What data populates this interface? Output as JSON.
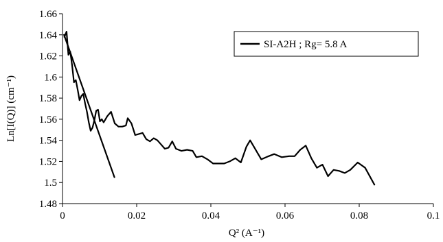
{
  "chart_data": {
    "type": "line",
    "title": "",
    "xlabel": "Q² (A⁻¹)",
    "ylabel": "Ln[I(Q)] (cm⁻¹)",
    "xlim": [
      0,
      0.1
    ],
    "ylim": [
      1.48,
      1.66
    ],
    "x_ticks": [
      "0",
      "0.02",
      "0.04",
      "0.06",
      "0.08",
      "0.1"
    ],
    "y_ticks": [
      "1.48",
      "1.5",
      "1.52",
      "1.54",
      "1.56",
      "1.58",
      "1.6",
      "1.62",
      "1.64",
      "1.66"
    ],
    "grid": false,
    "legend": {
      "placement": "top-right",
      "entries": [
        "SI-A2H ; Rg= 5.8 A"
      ]
    },
    "series": [
      {
        "name": "SI-A2H ; Rg= 5.8 A",
        "color": "#000000",
        "points": [
          [
            0.0005,
            1.638
          ],
          [
            0.0011,
            1.643
          ],
          [
            0.0016,
            1.621
          ],
          [
            0.0021,
            1.624
          ],
          [
            0.0026,
            1.611
          ],
          [
            0.0031,
            1.595
          ],
          [
            0.0036,
            1.597
          ],
          [
            0.0041,
            1.588
          ],
          [
            0.0046,
            1.578
          ],
          [
            0.0051,
            1.582
          ],
          [
            0.0056,
            1.584
          ],
          [
            0.0061,
            1.575
          ],
          [
            0.0066,
            1.567
          ],
          [
            0.0071,
            1.557
          ],
          [
            0.0076,
            1.549
          ],
          [
            0.0081,
            1.552
          ],
          [
            0.0086,
            1.559
          ],
          [
            0.0091,
            1.568
          ],
          [
            0.0096,
            1.569
          ],
          [
            0.0101,
            1.558
          ],
          [
            0.0106,
            1.56
          ],
          [
            0.0111,
            1.557
          ],
          [
            0.0116,
            1.56
          ],
          [
            0.0121,
            1.563
          ],
          [
            0.0131,
            1.567
          ],
          [
            0.0141,
            1.556
          ],
          [
            0.0151,
            1.553
          ],
          [
            0.0161,
            1.553
          ],
          [
            0.0171,
            1.554
          ],
          [
            0.0176,
            1.561
          ],
          [
            0.0186,
            1.556
          ],
          [
            0.0196,
            1.545
          ],
          [
            0.0206,
            1.546
          ],
          [
            0.0216,
            1.547
          ],
          [
            0.0226,
            1.541
          ],
          [
            0.0236,
            1.539
          ],
          [
            0.0246,
            1.542
          ],
          [
            0.0256,
            1.54
          ],
          [
            0.0266,
            1.536
          ],
          [
            0.0276,
            1.532
          ],
          [
            0.0286,
            1.533
          ],
          [
            0.0296,
            1.539
          ],
          [
            0.0306,
            1.532
          ],
          [
            0.0321,
            1.53
          ],
          [
            0.0336,
            1.531
          ],
          [
            0.0351,
            1.53
          ],
          [
            0.0361,
            1.524
          ],
          [
            0.0376,
            1.525
          ],
          [
            0.0391,
            1.522
          ],
          [
            0.0406,
            1.518
          ],
          [
            0.0421,
            1.518
          ],
          [
            0.0436,
            1.518
          ],
          [
            0.0451,
            1.52
          ],
          [
            0.0466,
            1.523
          ],
          [
            0.0481,
            1.519
          ],
          [
            0.0496,
            1.534
          ],
          [
            0.0506,
            1.54
          ],
          [
            0.0516,
            1.534
          ],
          [
            0.0536,
            1.522
          ],
          [
            0.0556,
            1.525
          ],
          [
            0.0571,
            1.527
          ],
          [
            0.0591,
            1.524
          ],
          [
            0.0611,
            1.525
          ],
          [
            0.0626,
            1.525
          ],
          [
            0.0641,
            1.531
          ],
          [
            0.0656,
            1.535
          ],
          [
            0.0671,
            1.523
          ],
          [
            0.0686,
            1.514
          ],
          [
            0.0701,
            1.517
          ],
          [
            0.0716,
            1.506
          ],
          [
            0.0731,
            1.512
          ],
          [
            0.0746,
            1.511
          ],
          [
            0.0761,
            1.509
          ],
          [
            0.0776,
            1.512
          ],
          [
            0.0796,
            1.519
          ],
          [
            0.0816,
            1.514
          ],
          [
            0.0841,
            1.498
          ]
        ]
      },
      {
        "color": "#000000",
        "points": [
          [
            0.0004,
            1.64
          ],
          [
            0.014,
            1.505
          ]
        ]
      }
    ]
  }
}
